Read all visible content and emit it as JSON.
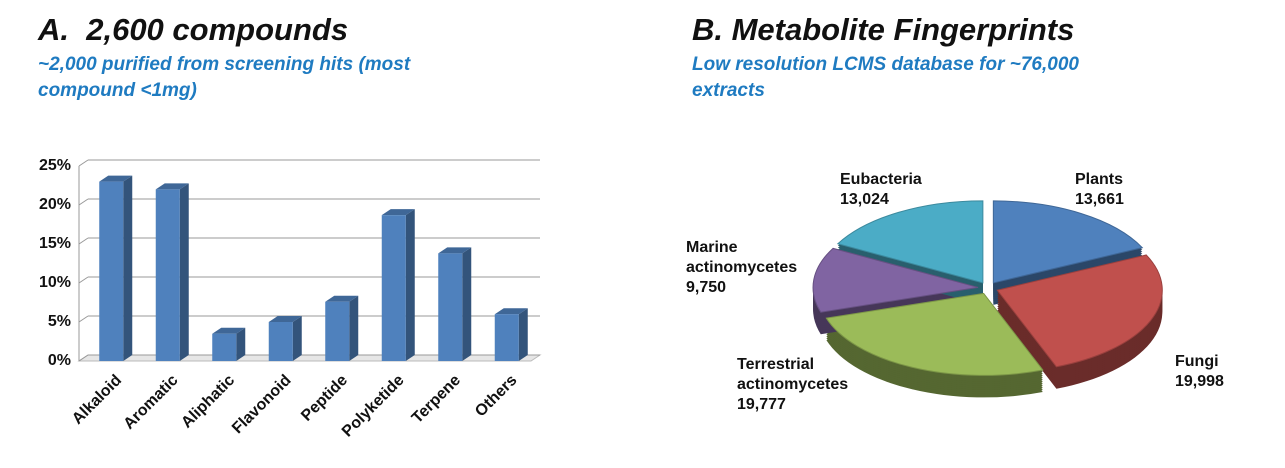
{
  "chart_data": [
    {
      "type": "bar",
      "title": "A.  2,600 compounds",
      "subtitle": "~2,000 purified from screening hits (most compound <1mg)",
      "categories": [
        "Alkaloid",
        "Aromatic",
        "Aliphatic",
        "Flavonoid",
        "Peptide",
        "Polyketide",
        "Terpene",
        "Others"
      ],
      "values": [
        23,
        22,
        3.5,
        5,
        7.6,
        18.7,
        13.8,
        6
      ],
      "color": "#4f81bd",
      "ylim": [
        0,
        25
      ],
      "yticks": [
        {
          "value": 0,
          "label": "0%"
        },
        {
          "value": 5,
          "label": "5%"
        },
        {
          "value": 10,
          "label": "10%"
        },
        {
          "value": 15,
          "label": "15%"
        },
        {
          "value": 20,
          "label": "20%"
        },
        {
          "value": 25,
          "label": "25%"
        }
      ],
      "grid": true
    },
    {
      "type": "pie",
      "title": "B. Metabolite Fingerprints",
      "subtitle": "Low resolution LCMS database for ~76,000 extracts",
      "categories": [
        "Plants",
        "Fungi",
        "Terrestrial actinomycetes",
        "Marine actinomycetes",
        "Eubacteria"
      ],
      "values": [
        13661,
        19998,
        19777,
        9750,
        13024
      ],
      "value_labels": [
        "13,661",
        "19,998",
        "19,777",
        "9,750",
        "13,024"
      ],
      "colors": [
        "#4f81bd",
        "#c0504d",
        "#9bbb59",
        "#8064a2",
        "#4bacc6"
      ]
    }
  ]
}
